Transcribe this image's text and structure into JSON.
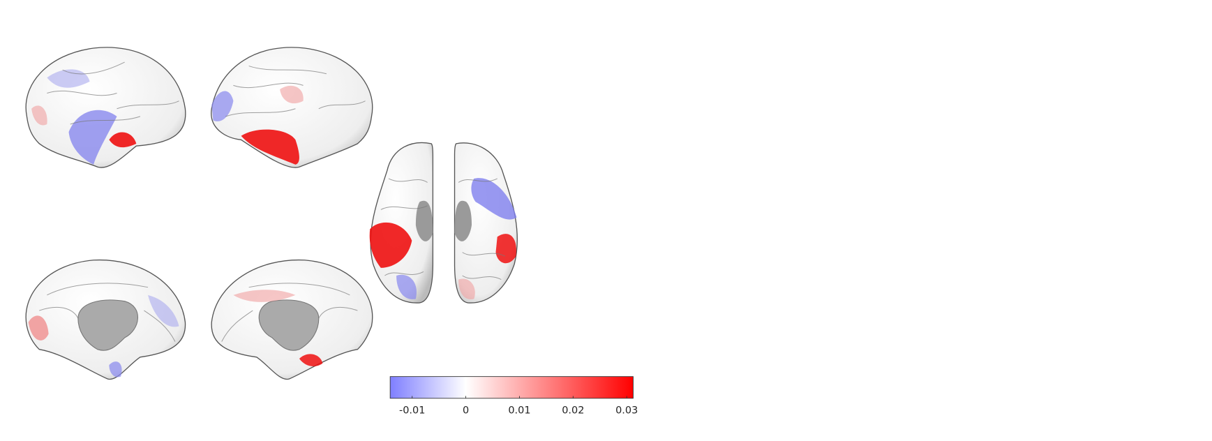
{
  "chart_data": {
    "type": "colorbar",
    "clim": [
      -0.0141,
      0.0312
    ],
    "colors": [
      "#7f7fff",
      "#ffffff",
      "#ff0000"
    ],
    "xticks": [
      -0.01,
      0,
      0.01,
      0.02,
      0.03
    ]
  }
}
